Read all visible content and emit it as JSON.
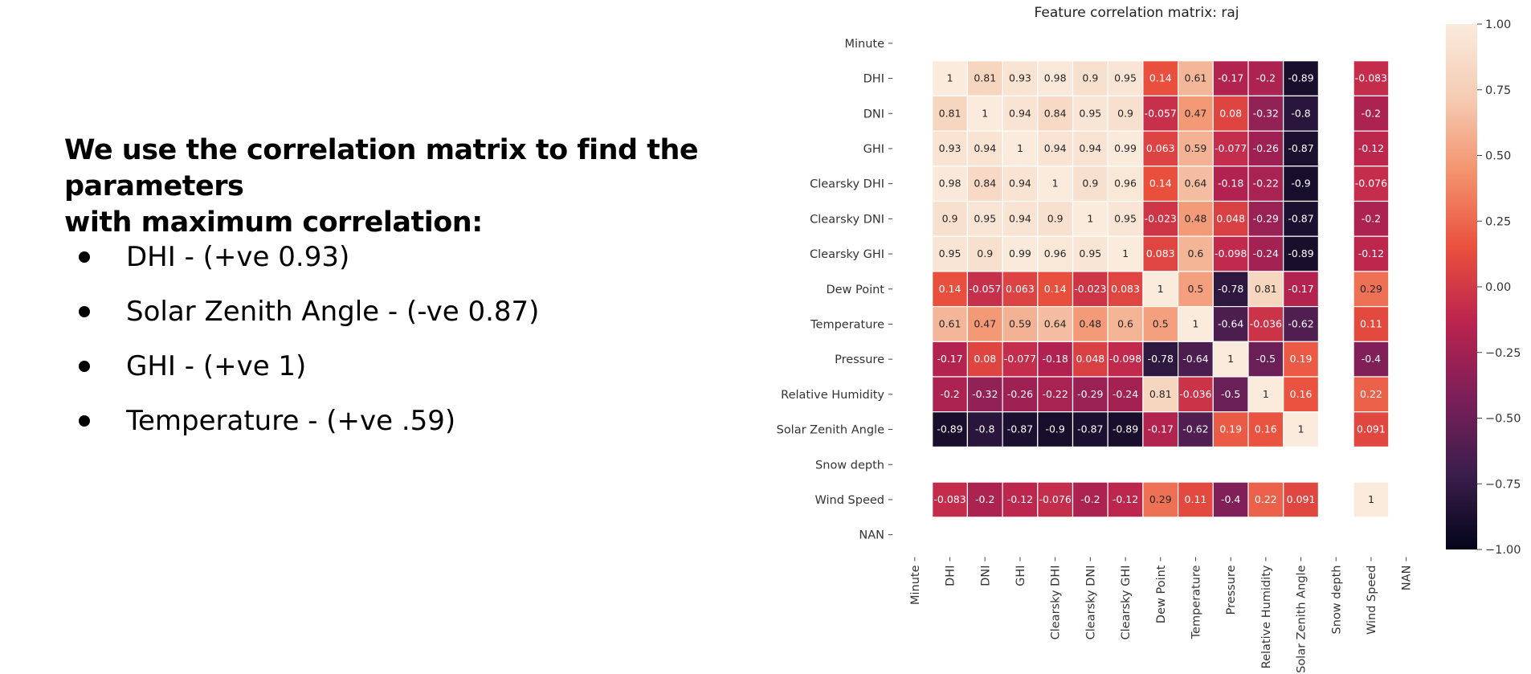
{
  "slide": {
    "heading_line1": "We use the correlation matrix to find the parameters",
    "heading_line2": "with maximum correlation:",
    "bullets": [
      "DHI - (+ve 0.93)",
      "Solar Zenith Angle - (-ve 0.87)",
      "GHI - (+ve 1)",
      "Temperature - (+ve .59)"
    ]
  },
  "chart_data": {
    "type": "heatmap",
    "title": "Feature correlation matrix: raj",
    "labels": [
      "Minute",
      "DHI",
      "DNI",
      "GHI",
      "Clearsky DHI",
      "Clearsky DNI",
      "Clearsky GHI",
      "Dew Point",
      "Temperature",
      "Pressure",
      "Relative Humidity",
      "Solar Zenith Angle",
      "Snow depth",
      "Wind Speed",
      "NAN"
    ],
    "values": [
      [
        null,
        null,
        null,
        null,
        null,
        null,
        null,
        null,
        null,
        null,
        null,
        null,
        null,
        null,
        null
      ],
      [
        null,
        1,
        0.81,
        0.93,
        0.98,
        0.9,
        0.95,
        0.14,
        0.61,
        -0.17,
        -0.2,
        -0.89,
        null,
        -0.083,
        null
      ],
      [
        null,
        0.81,
        1,
        0.94,
        0.84,
        0.95,
        0.9,
        -0.057,
        0.47,
        0.08,
        -0.32,
        -0.8,
        null,
        -0.2,
        null
      ],
      [
        null,
        0.93,
        0.94,
        1,
        0.94,
        0.94,
        0.99,
        0.063,
        0.59,
        -0.077,
        -0.26,
        -0.87,
        null,
        -0.12,
        null
      ],
      [
        null,
        0.98,
        0.84,
        0.94,
        1,
        0.9,
        0.96,
        0.14,
        0.64,
        -0.18,
        -0.22,
        -0.9,
        null,
        -0.076,
        null
      ],
      [
        null,
        0.9,
        0.95,
        0.94,
        0.9,
        1,
        0.95,
        -0.023,
        0.48,
        0.048,
        -0.29,
        -0.87,
        null,
        -0.2,
        null
      ],
      [
        null,
        0.95,
        0.9,
        0.99,
        0.96,
        0.95,
        1,
        0.083,
        0.6,
        -0.098,
        -0.24,
        -0.89,
        null,
        -0.12,
        null
      ],
      [
        null,
        0.14,
        -0.057,
        0.063,
        0.14,
        -0.023,
        0.083,
        1,
        0.5,
        -0.78,
        0.81,
        -0.17,
        null,
        0.29,
        null
      ],
      [
        null,
        0.61,
        0.47,
        0.59,
        0.64,
        0.48,
        0.6,
        0.5,
        1,
        -0.64,
        -0.036,
        -0.62,
        null,
        0.11,
        null
      ],
      [
        null,
        -0.17,
        0.08,
        -0.077,
        -0.18,
        0.048,
        -0.098,
        -0.78,
        -0.64,
        1,
        -0.5,
        0.19,
        null,
        -0.4,
        null
      ],
      [
        null,
        -0.2,
        -0.32,
        -0.26,
        -0.22,
        -0.29,
        -0.24,
        0.81,
        -0.036,
        -0.5,
        1,
        0.16,
        null,
        0.22,
        null
      ],
      [
        null,
        -0.89,
        -0.8,
        -0.87,
        -0.9,
        -0.87,
        -0.89,
        -0.17,
        -0.62,
        0.19,
        0.16,
        1,
        null,
        0.091,
        null
      ],
      [
        null,
        null,
        null,
        null,
        null,
        null,
        null,
        null,
        null,
        null,
        null,
        null,
        null,
        null,
        null
      ],
      [
        null,
        -0.083,
        -0.2,
        -0.12,
        -0.076,
        -0.2,
        -0.12,
        0.29,
        0.11,
        -0.4,
        0.22,
        0.091,
        null,
        1,
        null
      ],
      [
        null,
        null,
        null,
        null,
        null,
        null,
        null,
        null,
        null,
        null,
        null,
        null,
        null,
        null,
        null
      ]
    ],
    "display": [
      [
        null,
        null,
        null,
        null,
        null,
        null,
        null,
        null,
        null,
        null,
        null,
        null,
        null,
        null,
        null
      ],
      [
        null,
        "1",
        "0.81",
        "0.93",
        "0.98",
        "0.9",
        "0.95",
        "0.14",
        "0.61",
        "-0.17",
        "-0.2",
        "-0.89",
        null,
        "-0.083",
        null
      ],
      [
        null,
        "0.81",
        "1",
        "0.94",
        "0.84",
        "0.95",
        "0.9",
        "-0.057",
        "0.47",
        "0.08",
        "-0.32",
        "-0.8",
        null,
        "-0.2",
        null
      ],
      [
        null,
        "0.93",
        "0.94",
        "1",
        "0.94",
        "0.94",
        "0.99",
        "0.063",
        "0.59",
        "-0.077",
        "-0.26",
        "-0.87",
        null,
        "-0.12",
        null
      ],
      [
        null,
        "0.98",
        "0.84",
        "0.94",
        "1",
        "0.9",
        "0.96",
        "0.14",
        "0.64",
        "-0.18",
        "-0.22",
        "-0.9",
        null,
        "-0.076",
        null
      ],
      [
        null,
        "0.9",
        "0.95",
        "0.94",
        "0.9",
        "1",
        "0.95",
        "-0.023",
        "0.48",
        "0.048",
        "-0.29",
        "-0.87",
        null,
        "-0.2",
        null
      ],
      [
        null,
        "0.95",
        "0.9",
        "0.99",
        "0.96",
        "0.95",
        "1",
        "0.083",
        "0.6",
        "-0.098",
        "-0.24",
        "-0.89",
        null,
        "-0.12",
        null
      ],
      [
        null,
        "0.14",
        "-0.057",
        "0.063",
        "0.14",
        "-0.023",
        "0.083",
        "1",
        "0.5",
        "-0.78",
        "0.81",
        "-0.17",
        null,
        "0.29",
        null
      ],
      [
        null,
        "0.61",
        "0.47",
        "0.59",
        "0.64",
        "0.48",
        "0.6",
        "0.5",
        "1",
        "-0.64",
        "-0.036",
        "-0.62",
        null,
        "0.11",
        null
      ],
      [
        null,
        "-0.17",
        "0.08",
        "-0.077",
        "-0.18",
        "0.048",
        "-0.098",
        "-0.78",
        "-0.64",
        "1",
        "-0.5",
        "0.19",
        null,
        "-0.4",
        null
      ],
      [
        null,
        "-0.2",
        "-0.32",
        "-0.26",
        "-0.22",
        "-0.29",
        "-0.24",
        "0.81",
        "-0.036",
        "-0.5",
        "1",
        "0.16",
        null,
        "0.22",
        null
      ],
      [
        null,
        "-0.89",
        "-0.8",
        "-0.87",
        "-0.9",
        "-0.87",
        "-0.89",
        "-0.17",
        "-0.62",
        "0.19",
        "0.16",
        "1",
        null,
        "0.091",
        null
      ],
      [
        null,
        null,
        null,
        null,
        null,
        null,
        null,
        null,
        null,
        null,
        null,
        null,
        null,
        null,
        null
      ],
      [
        null,
        "-0.083",
        "-0.2",
        "-0.12",
        "-0.076",
        "-0.2",
        "-0.12",
        "0.29",
        "0.11",
        "-0.4",
        "0.22",
        "0.091",
        null,
        "1",
        null
      ],
      [
        null,
        null,
        null,
        null,
        null,
        null,
        null,
        null,
        null,
        null,
        null,
        null,
        null,
        null,
        null
      ]
    ],
    "colorbar": {
      "range": [
        -1,
        1
      ],
      "ticks": [
        "1.00",
        "0.75",
        "0.50",
        "0.25",
        "0.00",
        "−0.25",
        "−0.50",
        "−0.75",
        "−1.00"
      ],
      "tick_values": [
        1,
        0.75,
        0.5,
        0.25,
        0,
        -0.25,
        -0.5,
        -0.75,
        -1
      ]
    },
    "colormap": [
      "#03051a",
      "#3b1e4b",
      "#7a1f59",
      "#b9234f",
      "#e94f3d",
      "#f3916c",
      "#f5cbb2",
      "#faebdd"
    ]
  }
}
